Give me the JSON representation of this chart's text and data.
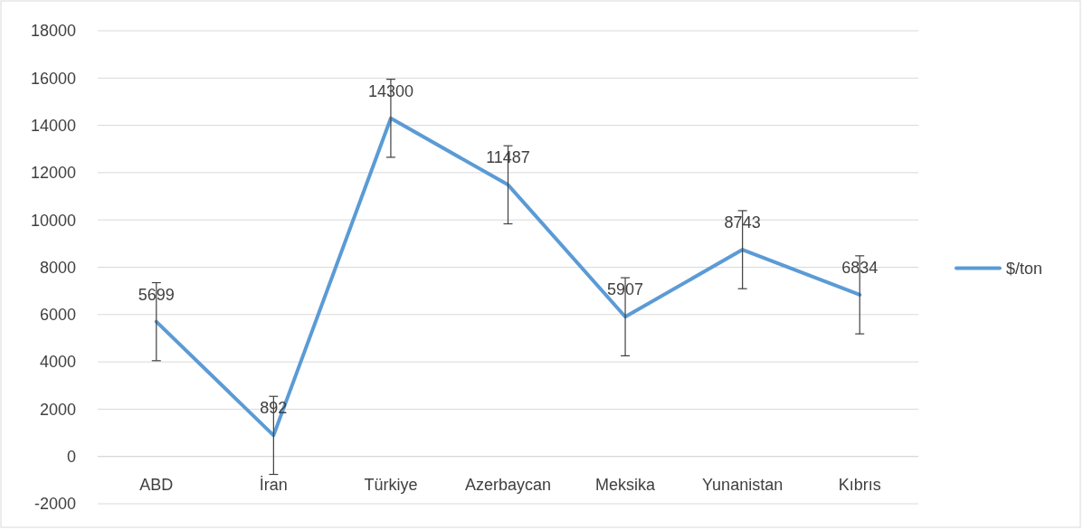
{
  "chart_data": {
    "type": "line",
    "categories": [
      "ABD",
      "İran",
      "Türkiye",
      "Azerbaycan",
      "Meksika",
      "Yunanistan",
      "Kıbrıs"
    ],
    "series": [
      {
        "name": "$/ton",
        "color": "#5b9bd5",
        "values": [
          5699,
          892,
          14300,
          11487,
          5907,
          8743,
          6834
        ],
        "errors": [
          1650,
          1650,
          1650,
          1650,
          1650,
          1650,
          1650
        ]
      }
    ],
    "ylim": [
      -2000,
      18000
    ],
    "yticks": [
      -2000,
      0,
      2000,
      4000,
      6000,
      8000,
      10000,
      12000,
      14000,
      16000,
      18000
    ],
    "grid": "y",
    "legend": "right",
    "data_labels": true,
    "marker": "none",
    "line_style": "solid"
  }
}
